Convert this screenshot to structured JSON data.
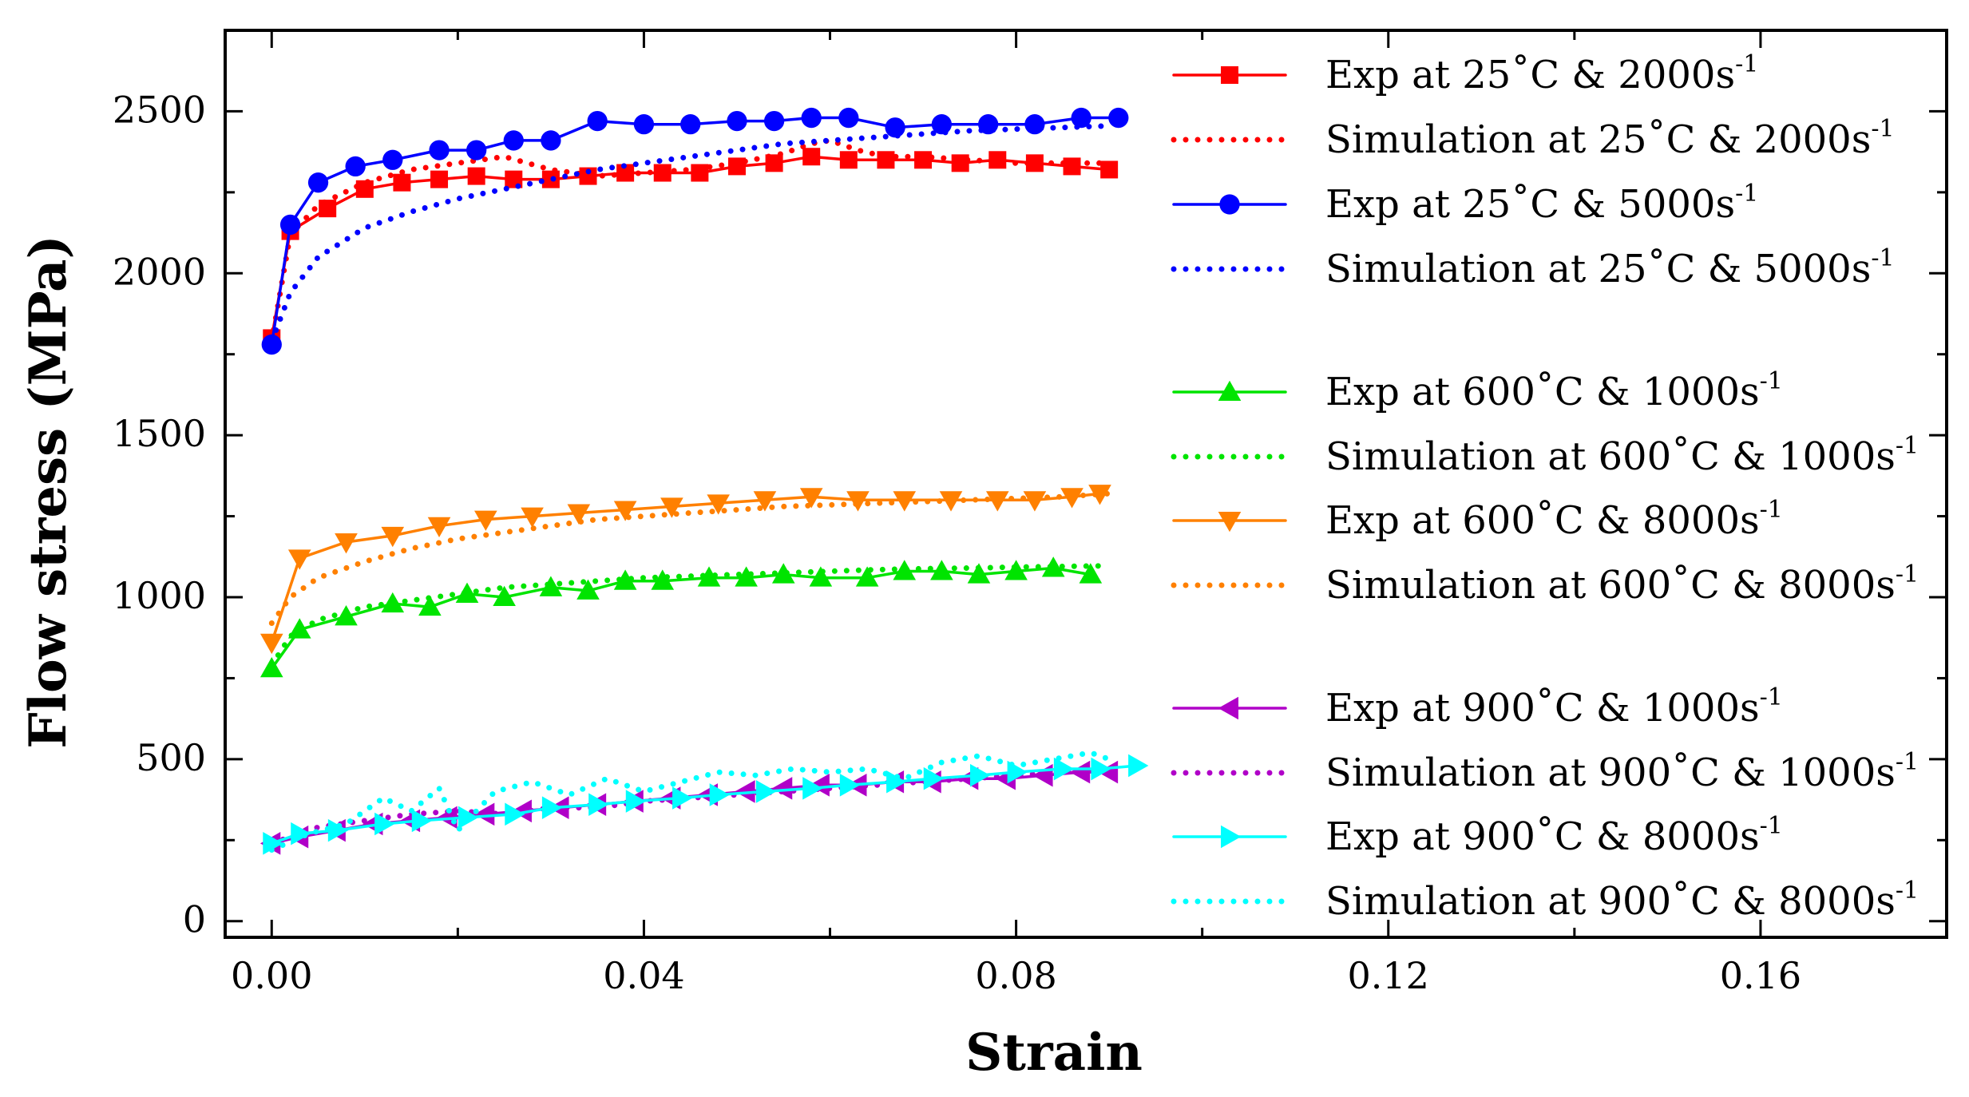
{
  "chart_data": {
    "type": "line",
    "xlabel": "Strain",
    "ylabel": "Flow stress (MPa)",
    "xlim": [
      -0.005,
      0.18
    ],
    "ylim": [
      -50,
      2750
    ],
    "xticks": [
      0.0,
      0.04,
      0.08,
      0.12,
      0.16
    ],
    "xtick_labels": [
      "0.00",
      "0.04",
      "0.08",
      "0.12",
      "0.16"
    ],
    "yticks": [
      0,
      500,
      1000,
      1500,
      2000,
      2500
    ],
    "ytick_labels": [
      "0",
      "500",
      "1000",
      "1500",
      "2000",
      "2500"
    ],
    "legend_position": "right",
    "grid": false,
    "series": [
      {
        "name": "Exp at 25˚C & 2000s-1",
        "label_main": "Exp at 25˚C & 2000s",
        "label_sup": "-1",
        "color": "#ff0000",
        "style": "solid",
        "marker": "square",
        "x": [
          0.0,
          0.002,
          0.006,
          0.01,
          0.014,
          0.018,
          0.022,
          0.026,
          0.03,
          0.034,
          0.038,
          0.042,
          0.046,
          0.05,
          0.054,
          0.058,
          0.062,
          0.066,
          0.07,
          0.074,
          0.078,
          0.082,
          0.086,
          0.09
        ],
        "y": [
          1800,
          2130,
          2200,
          2260,
          2280,
          2290,
          2300,
          2290,
          2290,
          2300,
          2310,
          2310,
          2310,
          2330,
          2340,
          2360,
          2350,
          2350,
          2350,
          2340,
          2350,
          2340,
          2330,
          2320
        ]
      },
      {
        "name": "Simulation at 25˚C & 2000s-1",
        "label_main": "Simulation at 25˚C & 2000s",
        "label_sup": "-1",
        "color": "#ff0000",
        "style": "dotted",
        "marker": "none",
        "x": [
          0.0,
          0.002,
          0.005,
          0.01,
          0.015,
          0.02,
          0.025,
          0.03,
          0.035,
          0.04,
          0.045,
          0.05,
          0.055,
          0.058,
          0.06,
          0.063,
          0.066,
          0.07,
          0.075,
          0.08,
          0.085,
          0.09
        ],
        "y": [
          1790,
          2120,
          2210,
          2280,
          2320,
          2340,
          2360,
          2320,
          2300,
          2310,
          2320,
          2340,
          2370,
          2400,
          2410,
          2380,
          2360,
          2360,
          2350,
          2340,
          2340,
          2340
        ]
      },
      {
        "name": "Exp at 25˚C & 5000s-1",
        "label_main": "Exp at 25˚C & 5000s",
        "label_sup": "-1",
        "color": "#0000ff",
        "style": "solid",
        "marker": "circle",
        "x": [
          0.0,
          0.002,
          0.005,
          0.009,
          0.013,
          0.018,
          0.022,
          0.026,
          0.03,
          0.035,
          0.04,
          0.045,
          0.05,
          0.054,
          0.058,
          0.062,
          0.067,
          0.072,
          0.077,
          0.082,
          0.087,
          0.091
        ],
        "y": [
          1780,
          2150,
          2280,
          2330,
          2350,
          2380,
          2380,
          2410,
          2410,
          2470,
          2460,
          2460,
          2470,
          2470,
          2480,
          2480,
          2450,
          2460,
          2460,
          2460,
          2480,
          2480
        ]
      },
      {
        "name": "Simulation at 25˚C & 5000s-1",
        "label_main": "Simulation at 25˚C & 5000s",
        "label_sup": "-1",
        "color": "#0000ff",
        "style": "dotted",
        "marker": "none",
        "x": [
          0.0,
          0.002,
          0.005,
          0.01,
          0.015,
          0.02,
          0.025,
          0.03,
          0.035,
          0.04,
          0.045,
          0.05,
          0.055,
          0.06,
          0.065,
          0.07,
          0.075,
          0.08,
          0.085,
          0.09
        ],
        "y": [
          1790,
          1940,
          2050,
          2140,
          2190,
          2230,
          2260,
          2290,
          2320,
          2340,
          2360,
          2380,
          2400,
          2410,
          2420,
          2430,
          2440,
          2445,
          2450,
          2455
        ]
      },
      {
        "name": "Exp at 600˚C & 1000s-1",
        "label_main": "Exp at 600˚C & 1000s",
        "label_sup": "-1",
        "color": "#00e400",
        "style": "solid",
        "marker": "triangle-up",
        "x": [
          0.0,
          0.003,
          0.008,
          0.013,
          0.017,
          0.021,
          0.025,
          0.03,
          0.034,
          0.038,
          0.042,
          0.047,
          0.051,
          0.055,
          0.059,
          0.064,
          0.068,
          0.072,
          0.076,
          0.08,
          0.084,
          0.088
        ],
        "y": [
          780,
          900,
          940,
          980,
          970,
          1010,
          1000,
          1030,
          1020,
          1050,
          1050,
          1060,
          1060,
          1070,
          1060,
          1060,
          1080,
          1080,
          1070,
          1080,
          1090,
          1070
        ]
      },
      {
        "name": "Simulation at 600˚C & 1000s-1",
        "label_main": "Simulation at 600˚C & 1000s",
        "label_sup": "-1",
        "color": "#00e400",
        "style": "dotted",
        "marker": "none",
        "x": [
          0.0,
          0.002,
          0.005,
          0.01,
          0.015,
          0.02,
          0.025,
          0.03,
          0.035,
          0.04,
          0.045,
          0.05,
          0.055,
          0.06,
          0.065,
          0.07,
          0.075,
          0.08,
          0.085,
          0.09
        ],
        "y": [
          790,
          880,
          930,
          970,
          990,
          1010,
          1030,
          1040,
          1050,
          1060,
          1065,
          1070,
          1075,
          1080,
          1085,
          1088,
          1090,
          1093,
          1095,
          1097
        ]
      },
      {
        "name": "Exp at 600˚C & 8000s-1",
        "label_main": "Exp at 600˚C & 8000s",
        "label_sup": "-1",
        "color": "#ff8000",
        "style": "solid",
        "marker": "triangle-down",
        "x": [
          0.0,
          0.003,
          0.008,
          0.013,
          0.018,
          0.023,
          0.028,
          0.033,
          0.038,
          0.043,
          0.048,
          0.053,
          0.058,
          0.063,
          0.068,
          0.073,
          0.078,
          0.082,
          0.086,
          0.089
        ],
        "y": [
          860,
          1120,
          1170,
          1190,
          1220,
          1240,
          1250,
          1260,
          1270,
          1280,
          1290,
          1300,
          1310,
          1300,
          1300,
          1300,
          1300,
          1300,
          1310,
          1320
        ]
      },
      {
        "name": "Simulation at 600˚C & 8000s-1",
        "label_main": "Simulation at 600˚C & 8000s",
        "label_sup": "-1",
        "color": "#ff8000",
        "style": "dotted",
        "marker": "none",
        "x": [
          0.0,
          0.002,
          0.005,
          0.01,
          0.015,
          0.02,
          0.025,
          0.03,
          0.035,
          0.04,
          0.045,
          0.05,
          0.055,
          0.06,
          0.065,
          0.07,
          0.075,
          0.08,
          0.085,
          0.09
        ],
        "y": [
          920,
          1000,
          1060,
          1110,
          1150,
          1180,
          1200,
          1220,
          1240,
          1250,
          1260,
          1270,
          1280,
          1285,
          1290,
          1295,
          1300,
          1305,
          1310,
          1320
        ]
      },
      {
        "name": "Exp at 900˚C & 1000s-1",
        "label_main": "Exp at 900˚C & 1000s",
        "label_sup": "-1",
        "color": "#b000c8",
        "style": "solid",
        "marker": "triangle-left",
        "x": [
          0.0,
          0.003,
          0.007,
          0.011,
          0.015,
          0.019,
          0.023,
          0.027,
          0.031,
          0.035,
          0.039,
          0.043,
          0.047,
          0.051,
          0.055,
          0.059,
          0.063,
          0.067,
          0.071,
          0.075,
          0.079,
          0.083,
          0.087,
          0.09
        ],
        "y": [
          240,
          260,
          280,
          300,
          310,
          320,
          330,
          340,
          350,
          360,
          370,
          380,
          390,
          400,
          410,
          420,
          420,
          430,
          430,
          440,
          440,
          450,
          460,
          460
        ]
      },
      {
        "name": "Simulation at 900˚C & 1000s-1",
        "label_main": "Simulation at 900˚C & 1000s",
        "label_sup": "-1",
        "color": "#b000c8",
        "style": "dotted",
        "marker": "none",
        "x": [
          0.0,
          0.005,
          0.01,
          0.015,
          0.02,
          0.025,
          0.03,
          0.035,
          0.04,
          0.045,
          0.05,
          0.055,
          0.06,
          0.065,
          0.07,
          0.075,
          0.08,
          0.085,
          0.09
        ],
        "y": [
          240,
          290,
          310,
          330,
          340,
          330,
          350,
          350,
          370,
          380,
          390,
          400,
          410,
          420,
          430,
          440,
          450,
          460,
          470
        ]
      },
      {
        "name": "Exp at 900˚C & 8000s-1",
        "label_main": "Exp at 900˚C & 8000s",
        "label_sup": "-1",
        "color": "#00ffff",
        "style": "solid",
        "marker": "triangle-right",
        "x": [
          0.0,
          0.003,
          0.007,
          0.012,
          0.016,
          0.021,
          0.026,
          0.03,
          0.035,
          0.039,
          0.044,
          0.048,
          0.053,
          0.058,
          0.062,
          0.067,
          0.071,
          0.076,
          0.08,
          0.085,
          0.089,
          0.093
        ],
        "y": [
          240,
          270,
          280,
          300,
          310,
          320,
          330,
          350,
          360,
          370,
          380,
          390,
          400,
          410,
          420,
          430,
          440,
          450,
          460,
          470,
          470,
          480
        ]
      },
      {
        "name": "Simulation at 900˚C & 8000s-1",
        "label_main": "Simulation at 900˚C & 8000s",
        "label_sup": "-1",
        "color": "#00ffff",
        "style": "dotted",
        "marker": "none",
        "x": [
          0.0,
          0.004,
          0.008,
          0.012,
          0.015,
          0.018,
          0.02,
          0.024,
          0.028,
          0.032,
          0.036,
          0.04,
          0.044,
          0.048,
          0.052,
          0.056,
          0.06,
          0.064,
          0.068,
          0.072,
          0.076,
          0.08,
          0.084,
          0.088,
          0.09
        ],
        "y": [
          220,
          270,
          300,
          380,
          340,
          410,
          280,
          400,
          430,
          390,
          440,
          400,
          430,
          460,
          450,
          470,
          460,
          470,
          440,
          490,
          510,
          480,
          500,
          520,
          500
        ]
      }
    ]
  }
}
